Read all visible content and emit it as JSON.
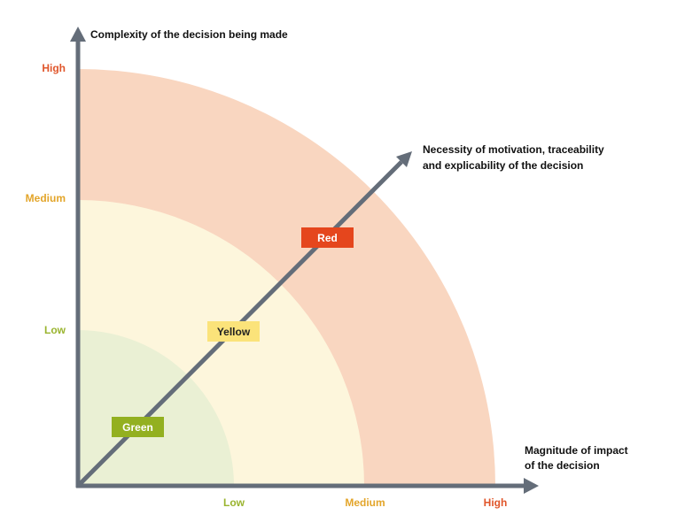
{
  "y_axis": {
    "title": "Complexity of the decision being made",
    "ticks": [
      {
        "label": "High",
        "color": "#e0562b"
      },
      {
        "label": "Medium",
        "color": "#e3a52a"
      },
      {
        "label": "Low",
        "color": "#9ab42f"
      }
    ]
  },
  "x_axis": {
    "title_line1": "Magnitude of impact",
    "title_line2": "of the decision",
    "ticks": [
      {
        "label": "Low",
        "color": "#9ab42f"
      },
      {
        "label": "Medium",
        "color": "#e3a52a"
      },
      {
        "label": "High",
        "color": "#e0562b"
      }
    ]
  },
  "diagonal_axis": {
    "title_line1": "Necessity of motivation, traceability",
    "title_line2": "and explicability of the decision"
  },
  "zones": [
    {
      "label": "Green",
      "fill": "#eaf0d4",
      "badge_bg": "#93b020",
      "badge_text": "#ffffff"
    },
    {
      "label": "Yellow",
      "fill": "#fdf6dc",
      "badge_bg": "#fbe37a",
      "badge_text": "#222222"
    },
    {
      "label": "Red",
      "fill": "#f9d6c0",
      "badge_bg": "#e5461d",
      "badge_text": "#ffffff"
    }
  ],
  "colors": {
    "axis": "#646d79"
  }
}
